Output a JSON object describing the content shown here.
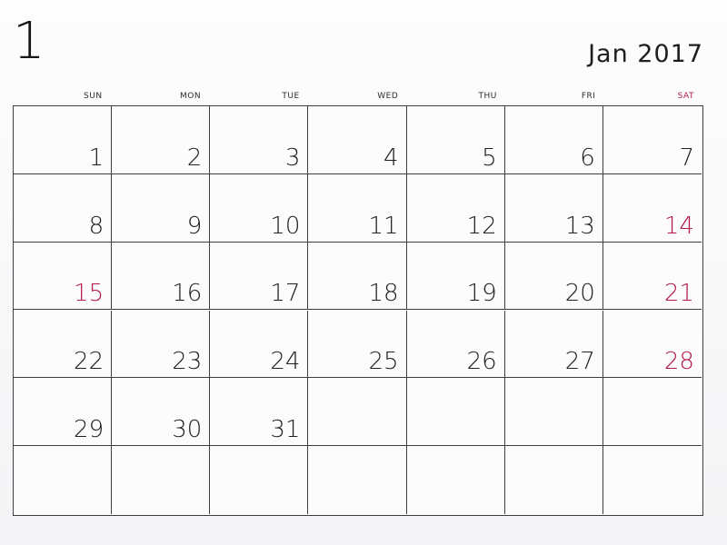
{
  "header": {
    "month_number": "1",
    "month_label": "Jan 2017"
  },
  "weekdays": [
    "SUN",
    "MON",
    "TUE",
    "WED",
    "THU",
    "FRI",
    "SAT"
  ],
  "colors": {
    "grid_line": "#3a3f44",
    "text": "#202020",
    "weekend_accent": "#b3194a"
  },
  "weeks": [
    [
      "1",
      "2",
      "3",
      "4",
      "5",
      "6",
      "7"
    ],
    [
      "8",
      "9",
      "10",
      "11",
      "12",
      "13",
      "14"
    ],
    [
      "15",
      "16",
      "17",
      "18",
      "19",
      "20",
      "21"
    ],
    [
      "22",
      "23",
      "24",
      "25",
      "26",
      "27",
      "28"
    ],
    [
      "29",
      "30",
      "31",
      "",
      "",
      "",
      ""
    ],
    [
      "",
      "",
      "",
      "",
      "",
      "",
      ""
    ]
  ],
  "accented_days": [
    "14",
    "15",
    "21",
    "28"
  ]
}
